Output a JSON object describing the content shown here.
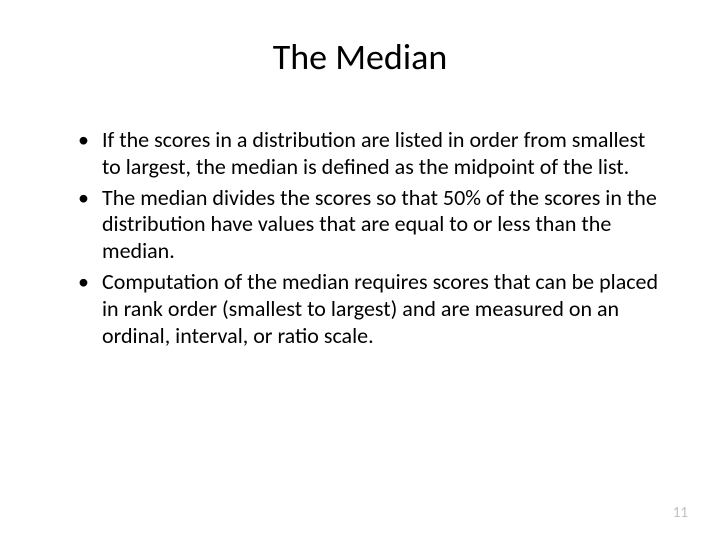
{
  "slide": {
    "title": "The Median",
    "bullets": [
      "If the scores in a distribution are listed in order from smallest to largest, the median is defined as the midpoint of the list.",
      "The median divides the scores so that 50% of the scores in the distribution have values that are equal to or less than the median.",
      "Computation of the median requires scores that can be placed in rank order (smallest to largest) and are measured on an ordinal, interval, or ratio scale."
    ],
    "page_number": "11"
  },
  "styles": {
    "background_color": "#ffffff",
    "title_fontsize": 36,
    "title_color": "#000000",
    "body_fontsize": 22,
    "body_color": "#000000",
    "page_number_color": "#bfbfbf",
    "page_number_fontsize": 15,
    "font_family": "Calibri"
  }
}
